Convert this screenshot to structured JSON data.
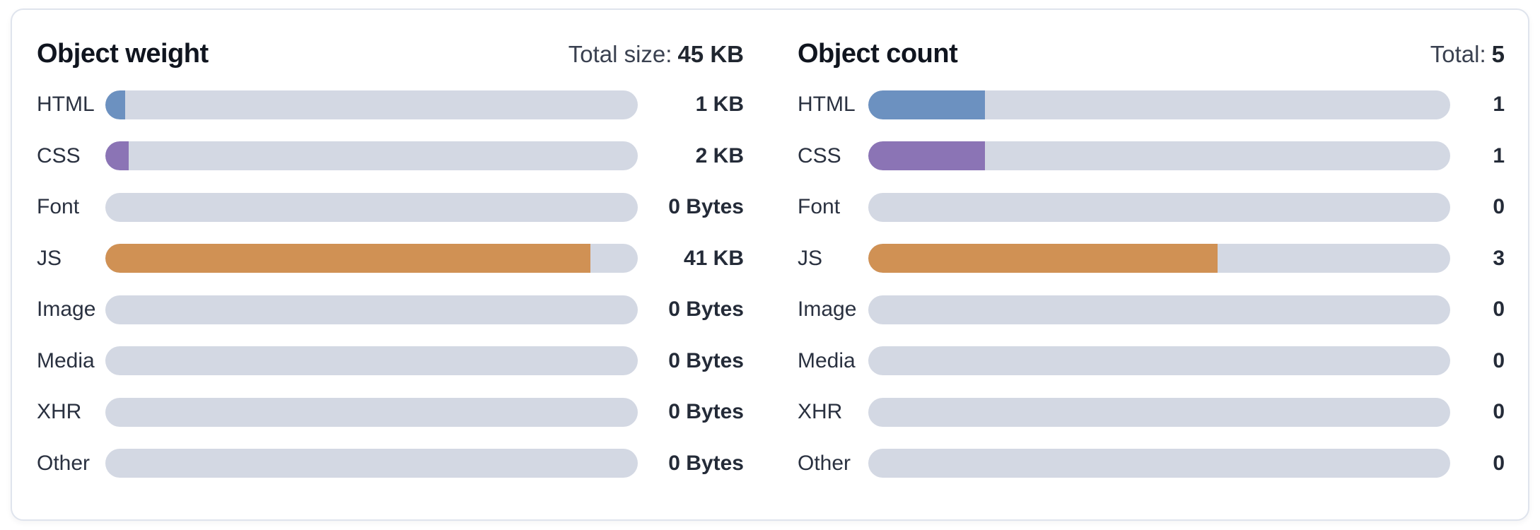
{
  "card": {
    "background": "#ffffff",
    "border_color": "#dfe4ed"
  },
  "colors": {
    "track": "#d3d8e3",
    "html": "#6c91c0",
    "css": "#8b74b5",
    "js": "#d09154"
  },
  "chart_data": [
    {
      "type": "bar",
      "orientation": "horizontal",
      "title": "Object weight",
      "total_label": "Total size:",
      "total_display": "45 KB",
      "total": 45,
      "unit": "KB",
      "categories": [
        "HTML",
        "CSS",
        "Font",
        "JS",
        "Image",
        "Media",
        "XHR",
        "Other"
      ],
      "values": [
        1,
        2,
        0,
        41,
        0,
        0,
        0,
        0
      ],
      "rows": [
        {
          "label": "HTML",
          "value": 1,
          "display": "1 KB",
          "color": "#6c91c0"
        },
        {
          "label": "CSS",
          "value": 2,
          "display": "2 KB",
          "color": "#8b74b5"
        },
        {
          "label": "Font",
          "value": 0,
          "display": "0 Bytes",
          "color": null
        },
        {
          "label": "JS",
          "value": 41,
          "display": "41 KB",
          "color": "#d09154"
        },
        {
          "label": "Image",
          "value": 0,
          "display": "0 Bytes",
          "color": null
        },
        {
          "label": "Media",
          "value": 0,
          "display": "0 Bytes",
          "color": null
        },
        {
          "label": "XHR",
          "value": 0,
          "display": "0 Bytes",
          "color": null
        },
        {
          "label": "Other",
          "value": 0,
          "display": "0 Bytes",
          "color": null
        }
      ]
    },
    {
      "type": "bar",
      "orientation": "horizontal",
      "title": "Object count",
      "total_label": "Total:",
      "total_display": "5",
      "total": 5,
      "unit": "count",
      "categories": [
        "HTML",
        "CSS",
        "Font",
        "JS",
        "Image",
        "Media",
        "XHR",
        "Other"
      ],
      "values": [
        1,
        1,
        0,
        3,
        0,
        0,
        0,
        0
      ],
      "rows": [
        {
          "label": "HTML",
          "value": 1,
          "display": "1",
          "color": "#6c91c0"
        },
        {
          "label": "CSS",
          "value": 1,
          "display": "1",
          "color": "#8b74b5"
        },
        {
          "label": "Font",
          "value": 0,
          "display": "0",
          "color": null
        },
        {
          "label": "JS",
          "value": 3,
          "display": "3",
          "color": "#d09154"
        },
        {
          "label": "Image",
          "value": 0,
          "display": "0",
          "color": null
        },
        {
          "label": "Media",
          "value": 0,
          "display": "0",
          "color": null
        },
        {
          "label": "XHR",
          "value": 0,
          "display": "0",
          "color": null
        },
        {
          "label": "Other",
          "value": 0,
          "display": "0",
          "color": null
        }
      ]
    }
  ]
}
